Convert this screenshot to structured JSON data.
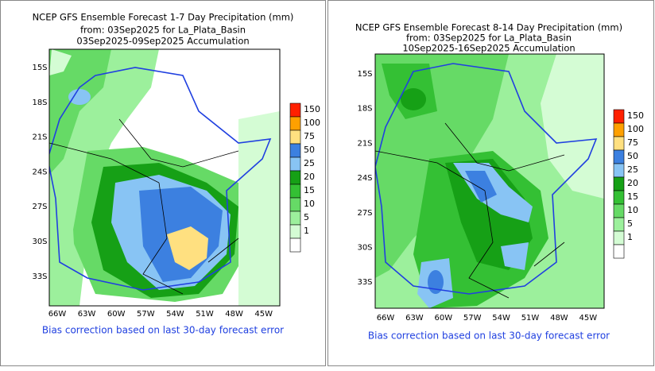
{
  "panels": [
    {
      "title_lines": [
        "NCEP GFS Ensemble Forecast 1-7 Day Precipitation (mm)",
        "from: 03Sep2025   for La_Plata_Basin",
        "03Sep2025-09Sep2025 Accumulation"
      ],
      "lat_labels": [
        "15S",
        "18S",
        "21S",
        "24S",
        "27S",
        "30S",
        "33S"
      ],
      "lon_labels": [
        "66W",
        "63W",
        "60W",
        "57W",
        "54W",
        "51W",
        "48W",
        "45W"
      ],
      "note": "Bias correction based on last 30-day forecast error"
    },
    {
      "title_lines": [
        "NCEP GFS Ensemble Forecast 8-14 Day Precipitation (mm)",
        "from: 03Sep2025   for La_Plata_Basin",
        "10Sep2025-16Sep2025 Accumulation"
      ],
      "lat_labels": [
        "15S",
        "18S",
        "21S",
        "24S",
        "27S",
        "30S",
        "33S"
      ],
      "lon_labels": [
        "66W",
        "63W",
        "60W",
        "57W",
        "54W",
        "51W",
        "48W",
        "45W"
      ],
      "note": "Bias correction based on last 30-day forecast error"
    }
  ],
  "colorbar": {
    "levels": [
      150,
      100,
      75,
      50,
      25,
      20,
      15,
      10,
      5,
      1
    ],
    "colors": [
      "#ff2000",
      "#ffa000",
      "#ffe080",
      "#3c80e0",
      "#88c4f4",
      "#16a016",
      "#34c034",
      "#66da66",
      "#9cf09c",
      "#d4fcd4",
      "#ffffff"
    ]
  }
}
